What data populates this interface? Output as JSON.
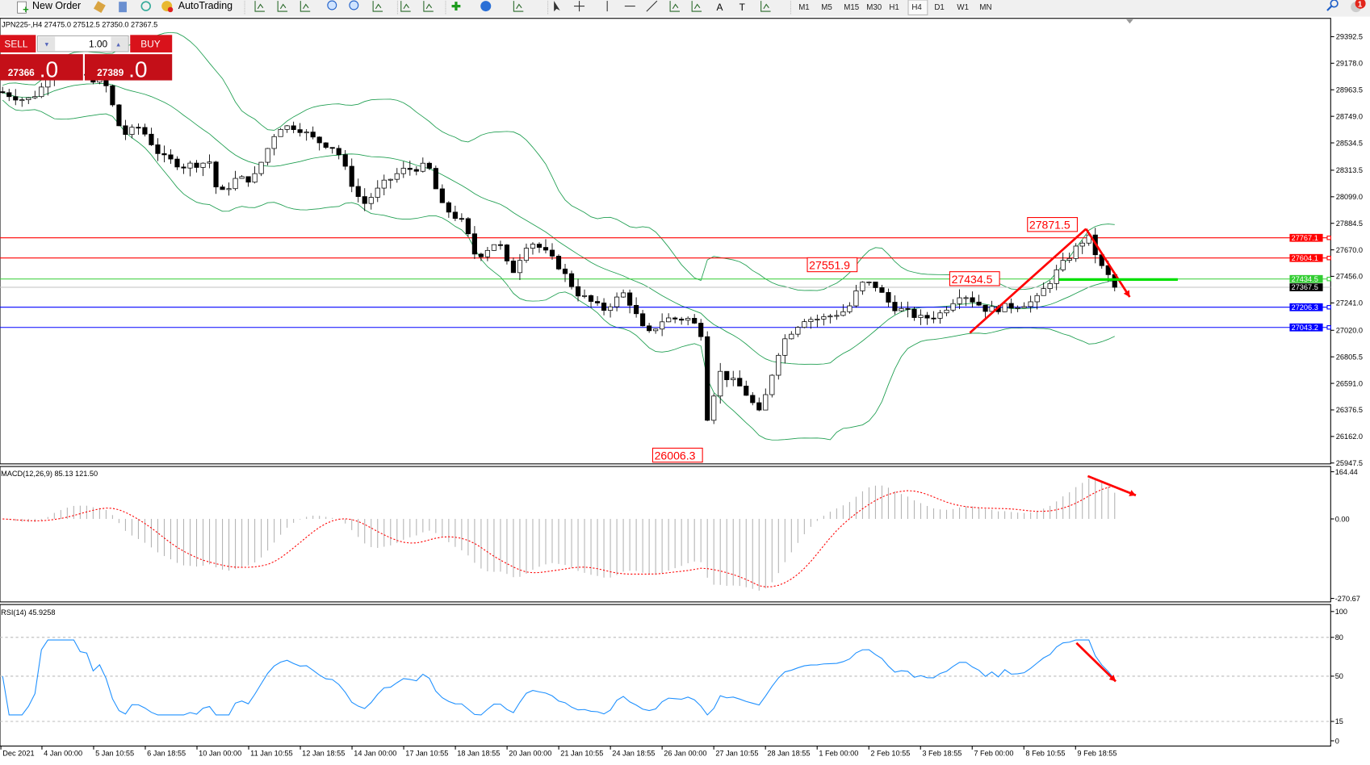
{
  "toolbar": {
    "new_order": "New Order",
    "autotrading": "AutoTrading",
    "timeframes": [
      "M1",
      "M5",
      "M15",
      "M30",
      "H1",
      "H4",
      "D1",
      "W1",
      "MN"
    ],
    "active_timeframe": "H4",
    "alerts_count": "1",
    "draw_text_tool": "A",
    "draw_label_tool": "T"
  },
  "chart": {
    "header": "JPN225-,H4  27475.0 27512.5 27350.0 27367.5",
    "price_axis": [
      "29392.5",
      "29178.0",
      "28963.5",
      "28749.0",
      "28534.5",
      "28313.5",
      "28099.0",
      "27884.5",
      "27670.0",
      "27456.0",
      "27241.0",
      "27020.0",
      "26805.5",
      "26591.0",
      "26376.5",
      "26162.0",
      "25947.5"
    ],
    "price_range": [
      25947.5,
      29392.5
    ],
    "levels": [
      {
        "price": "27767.1",
        "color": "#ff0000"
      },
      {
        "price": "27604.1",
        "color": "#ff0000"
      },
      {
        "price": "27434.5",
        "color": "#32cd32"
      },
      {
        "price": "27367.5",
        "color": "#000000",
        "line": "#c0c0c0"
      },
      {
        "price": "27206.3",
        "color": "#0000ff"
      },
      {
        "price": "27043.2",
        "color": "#0000ff"
      }
    ],
    "annotations": [
      "27871.5",
      "27551.9",
      "27434.5",
      "26006.3"
    ],
    "price_path": [
      [
        0,
        28948
      ],
      [
        30,
        28877
      ],
      [
        45,
        28948
      ],
      [
        60,
        29160
      ],
      [
        120,
        29019
      ],
      [
        140,
        28595
      ],
      [
        160,
        28665
      ],
      [
        185,
        28418
      ],
      [
        210,
        28348
      ],
      [
        240,
        28383
      ],
      [
        250,
        28101
      ],
      [
        270,
        28242
      ],
      [
        290,
        28242
      ],
      [
        318,
        28665
      ],
      [
        340,
        28665
      ],
      [
        360,
        28559
      ],
      [
        385,
        28489
      ],
      [
        400,
        28242
      ],
      [
        415,
        28030
      ],
      [
        440,
        28207
      ],
      [
        460,
        28312
      ],
      [
        490,
        28348
      ],
      [
        505,
        28030
      ],
      [
        530,
        27889
      ],
      [
        545,
        27607
      ],
      [
        570,
        27748
      ],
      [
        585,
        27466
      ],
      [
        605,
        27748
      ],
      [
        620,
        27677
      ],
      [
        640,
        27536
      ],
      [
        660,
        27325
      ],
      [
        690,
        27184
      ],
      [
        715,
        27325
      ],
      [
        740,
        26972
      ],
      [
        760,
        27113
      ],
      [
        790,
        27113
      ],
      [
        805,
        26972
      ],
      [
        810,
        26266
      ],
      [
        822,
        26690
      ],
      [
        850,
        26548
      ],
      [
        870,
        26336
      ],
      [
        890,
        26830
      ],
      [
        900,
        26972
      ],
      [
        920,
        27113
      ],
      [
        940,
        27113
      ],
      [
        970,
        27184
      ],
      [
        985,
        27395
      ],
      [
        1000,
        27395
      ],
      [
        1020,
        27219
      ],
      [
        1055,
        27113
      ],
      [
        1075,
        27148
      ],
      [
        1100,
        27325
      ],
      [
        1130,
        27184
      ],
      [
        1160,
        27219
      ],
      [
        1185,
        27254
      ],
      [
        1210,
        27501
      ],
      [
        1235,
        27713
      ],
      [
        1245,
        27783
      ],
      [
        1260,
        27536
      ],
      [
        1278,
        27367
      ]
    ]
  },
  "one_click": {
    "sell_label": "SELL",
    "buy_label": "BUY",
    "volume": "1.00",
    "sell_price_main": "27366",
    "sell_price_frac": ".0",
    "buy_price_main": "27389",
    "buy_price_frac": ".0",
    "color": "#d9121b"
  },
  "macd": {
    "label": "MACD(12,26,9) 85.13 121.50",
    "axis": [
      "164.44",
      "0.00",
      "-270.67"
    ]
  },
  "rsi": {
    "label": "RSI(14) 45.9258",
    "axis": [
      "100",
      "80",
      "50",
      "15",
      "0"
    ]
  },
  "time_axis": [
    "Dec 2021",
    "4 Jan 00:00",
    "5 Jan 10:55",
    "6 Jan 18:55",
    "10 Jan 00:00",
    "11 Jan 10:55",
    "12 Jan 18:55",
    "14 Jan 00:00",
    "17 Jan 10:55",
    "18 Jan 18:55",
    "20 Jan 00:00",
    "21 Jan 10:55",
    "24 Jan 18:55",
    "26 Jan 00:00",
    "27 Jan 10:55",
    "28 Jan 18:55",
    "1 Feb 00:00",
    "2 Feb 10:55",
    "3 Feb 18:55",
    "7 Feb 00:00",
    "8 Feb 10:55",
    "9 Feb 18:55"
  ],
  "colors": {
    "bands": "#1e9e50",
    "macd_signal": "#ff0000",
    "macd_hist": "#b4b4b4",
    "rsi_line": "#1e90ff",
    "annotation": "#ff0000"
  }
}
